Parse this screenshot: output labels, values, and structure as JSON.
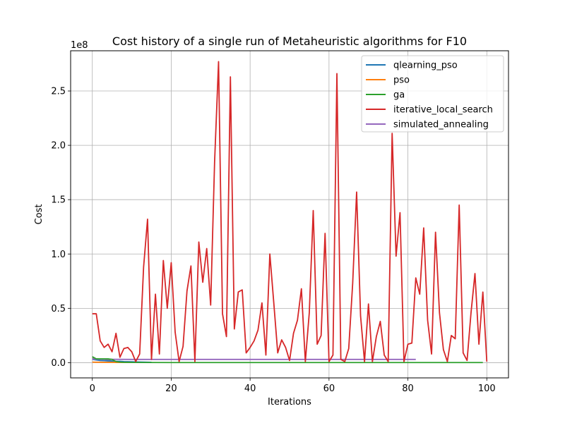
{
  "chart_data": {
    "type": "line",
    "title": "Cost history of a single run of Metaheuristic algorithms for F10",
    "xlabel": "Iterations",
    "ylabel": "Cost",
    "offset_label": "1e8",
    "xlim": [
      -5.5,
      105.5
    ],
    "ylim": [
      -0.14,
      2.87
    ],
    "y_scale_factor": 100000000,
    "xticks": [
      0,
      20,
      40,
      60,
      80,
      100
    ],
    "xtick_labels": [
      "0",
      "20",
      "40",
      "60",
      "80",
      "100"
    ],
    "yticks": [
      0.0,
      0.5,
      1.0,
      1.5,
      2.0,
      2.5
    ],
    "ytick_labels": [
      "0.0",
      "0.5",
      "1.0",
      "1.5",
      "2.0",
      "2.5"
    ],
    "grid": true,
    "legend_position": "top-right",
    "series": [
      {
        "name": "qlearning_pso",
        "color": "#1f77b4",
        "x": [
          0,
          1,
          2,
          3,
          4,
          5,
          6,
          7,
          8,
          9,
          10,
          11,
          12,
          13,
          14,
          15
        ],
        "y": [
          0.03,
          0.025,
          0.02,
          0.018,
          0.016,
          0.015,
          0.013,
          0.012,
          0.01,
          0.009,
          0.008,
          0.007,
          0.006,
          0.005,
          0.004,
          0.003
        ]
      },
      {
        "name": "pso",
        "color": "#ff7f0e",
        "x": [
          0,
          1,
          2,
          3,
          4,
          5,
          6,
          7,
          8,
          9,
          10
        ],
        "y": [
          0.005,
          0.004,
          0.004,
          0.003,
          0.003,
          0.003,
          0.002,
          0.002,
          0.002,
          0.002,
          0.002
        ]
      },
      {
        "name": "ga",
        "color": "#2ca02c",
        "x": [
          0,
          1,
          2,
          3,
          4,
          5,
          6,
          7,
          8,
          10,
          20,
          40,
          60,
          80,
          99
        ],
        "y": [
          0.055,
          0.035,
          0.035,
          0.035,
          0.035,
          0.03,
          0.01,
          0.005,
          0.003,
          0.002,
          0.001,
          0.001,
          0.001,
          0.001,
          0.001
        ]
      },
      {
        "name": "iterative_local_search",
        "color": "#d62728",
        "x": [
          0,
          1,
          2,
          3,
          4,
          5,
          6,
          7,
          8,
          9,
          10,
          11,
          12,
          13,
          14,
          15,
          16,
          17,
          18,
          19,
          20,
          21,
          22,
          23,
          24,
          25,
          26,
          27,
          28,
          29,
          30,
          31,
          32,
          33,
          34,
          35,
          36,
          37,
          38,
          39,
          40,
          41,
          42,
          43,
          44,
          45,
          46,
          47,
          48,
          49,
          50,
          51,
          52,
          53,
          54,
          55,
          56,
          57,
          58,
          59,
          60,
          61,
          62,
          63,
          64,
          65,
          66,
          67,
          68,
          69,
          70,
          71,
          72,
          73,
          74,
          75,
          76,
          77,
          78,
          79,
          80,
          81,
          82,
          83,
          84,
          85,
          86,
          87,
          88,
          89,
          90,
          91,
          92,
          93,
          94,
          95,
          96,
          97,
          98,
          99,
          100
        ],
        "y": [
          0.45,
          0.45,
          0.2,
          0.14,
          0.17,
          0.1,
          0.27,
          0.05,
          0.13,
          0.14,
          0.1,
          0.01,
          0.08,
          0.88,
          1.32,
          0.03,
          0.63,
          0.08,
          0.94,
          0.5,
          0.92,
          0.28,
          0.01,
          0.15,
          0.66,
          0.89,
          0.01,
          1.11,
          0.74,
          1.05,
          0.53,
          1.85,
          2.77,
          0.45,
          0.24,
          2.63,
          0.31,
          0.65,
          0.67,
          0.09,
          0.14,
          0.2,
          0.3,
          0.55,
          0.07,
          1.0,
          0.55,
          0.09,
          0.21,
          0.14,
          0.02,
          0.27,
          0.39,
          0.68,
          0.01,
          0.46,
          1.4,
          0.17,
          0.25,
          1.19,
          0.01,
          0.07,
          2.66,
          0.03,
          0.01,
          0.13,
          0.73,
          1.57,
          0.43,
          0.01,
          0.54,
          0.01,
          0.24,
          0.38,
          0.07,
          0.01,
          2.11,
          0.98,
          1.38,
          0.01,
          0.17,
          0.18,
          0.78,
          0.63,
          1.24,
          0.39,
          0.08,
          1.2,
          0.46,
          0.12,
          0.01,
          0.25,
          0.22,
          1.45,
          0.09,
          0.02,
          0.46,
          0.82,
          0.17,
          0.65,
          0.01
        ]
      },
      {
        "name": "simulated_annealing",
        "color": "#9467bd",
        "x": [
          0,
          10,
          20,
          30,
          40,
          50,
          60,
          70,
          82
        ],
        "y": [
          0.032,
          0.03,
          0.03,
          0.03,
          0.03,
          0.03,
          0.03,
          0.03,
          0.03
        ]
      },
      {
        "name": "",
        "color": "#7f7f7f",
        "x": [
          0,
          1,
          2,
          3,
          4,
          5,
          6,
          7,
          8,
          9,
          10
        ],
        "y": [
          0.04,
          0.035,
          0.032,
          0.03,
          0.025,
          0.015,
          0.005,
          0.004,
          0.004,
          0.003,
          0.003
        ]
      }
    ]
  }
}
